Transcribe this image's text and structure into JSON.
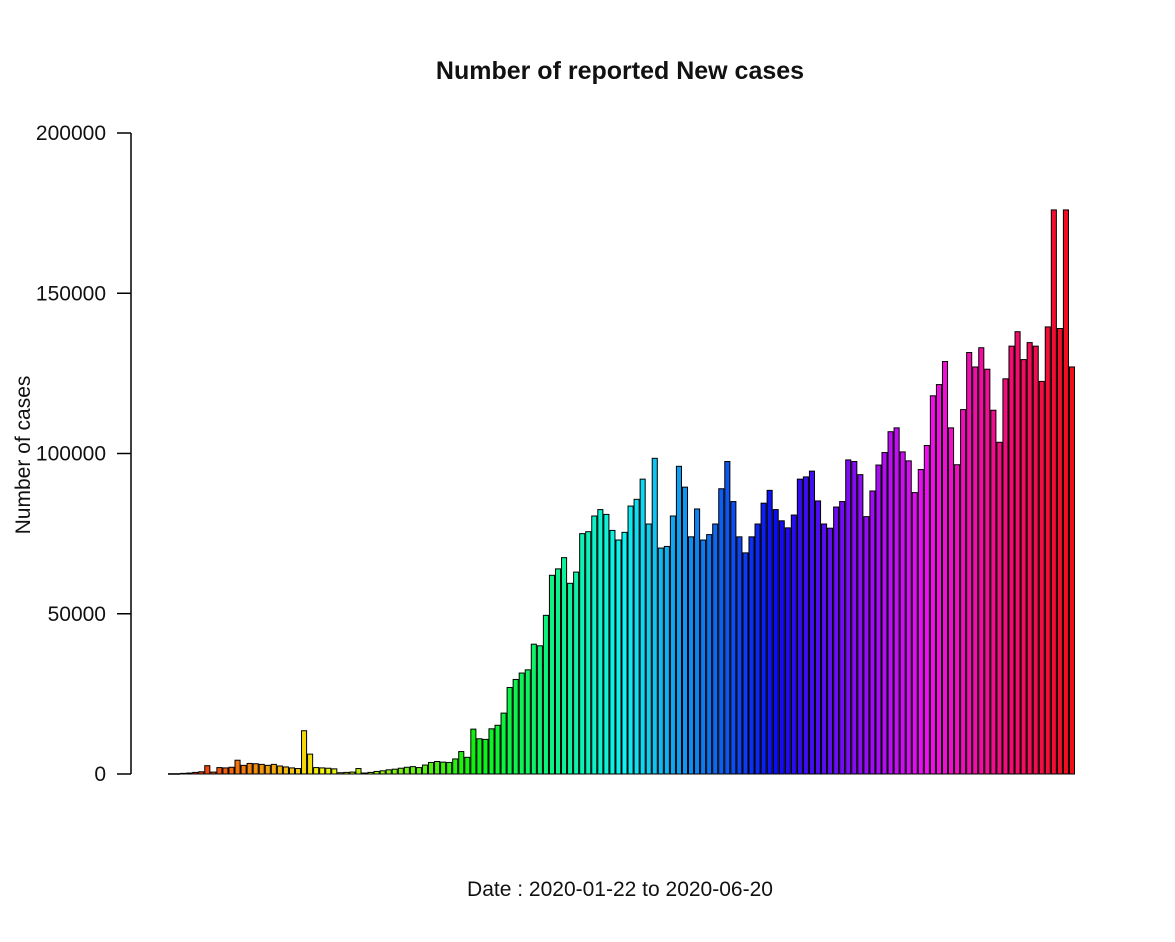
{
  "chart_data": {
    "type": "bar",
    "title": "Number of reported New cases",
    "xlabel": "Date : 2020-01-22 to 2020-06-20",
    "ylabel": "Number of cases",
    "ylim": [
      0,
      200000
    ],
    "yticks": [
      "0",
      "50000",
      "100000",
      "150000",
      "200000"
    ],
    "ytick_values": [
      0,
      50000,
      100000,
      150000,
      200000
    ],
    "grid": false,
    "legend": "none",
    "bar_colors": "rainbow, red to red (hue cycle)",
    "bar_border_color": "#000000",
    "values": [
      100,
      100,
      200,
      300,
      500,
      700,
      2600,
      600,
      2000,
      1900,
      2100,
      4300,
      2700,
      3300,
      3200,
      3000,
      2700,
      3000,
      2500,
      2200,
      1900,
      1700,
      13500,
      6200,
      2000,
      1900,
      1800,
      1600,
      400,
      500,
      600,
      1700,
      300,
      500,
      800,
      1000,
      1300,
      1500,
      1800,
      2100,
      2300,
      2000,
      2800,
      3600,
      3900,
      3700,
      3600,
      4700,
      7000,
      5200,
      14000,
      11000,
      10800,
      14100,
      15200,
      19000,
      27000,
      29500,
      31500,
      32500,
      40500,
      40000,
      49500,
      62000,
      64000,
      67500,
      59500,
      63000,
      75000,
      75600,
      80500,
      82500,
      81000,
      76000,
      73000,
      75400,
      83600,
      85700,
      92000,
      78000,
      98500,
      70500,
      71000,
      80500,
      96000,
      89500,
      74000,
      82700,
      73000,
      74700,
      78000,
      89000,
      97500,
      85000,
      74000,
      69000,
      74000,
      78000,
      84500,
      88500,
      82500,
      79000,
      76800,
      80800,
      92000,
      92700,
      94500,
      85200,
      78000,
      76700,
      83300,
      85000,
      98000,
      97500,
      93400,
      80300,
      88300,
      96400,
      100300,
      106800,
      108000,
      100500,
      97700,
      87800,
      95000,
      102500,
      118000,
      121500,
      128700,
      108000,
      96500,
      113700,
      131500,
      127000,
      133000,
      126300,
      113500,
      103500,
      123300,
      133500,
      138000,
      129300,
      134600,
      133500,
      122500,
      139500,
      176000,
      139000,
      176000,
      127000
    ]
  }
}
